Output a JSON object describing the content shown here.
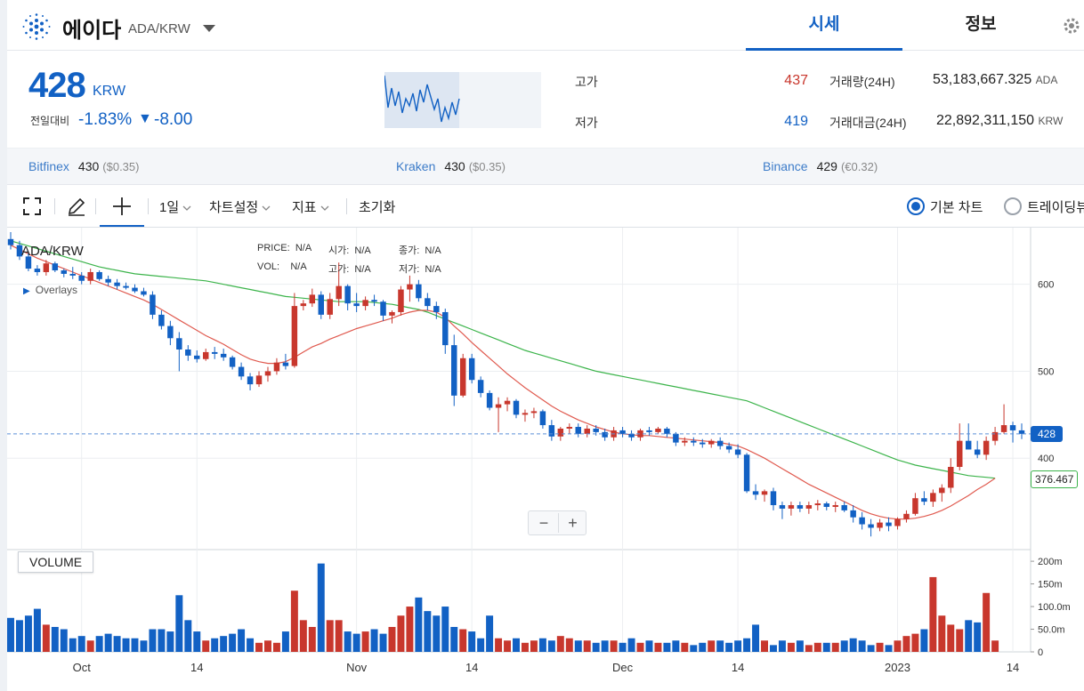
{
  "header": {
    "coin_name": "에이다",
    "pair": "ADA/KRW",
    "tabs": [
      {
        "label": "시세",
        "active": true
      },
      {
        "label": "정보",
        "active": false
      }
    ]
  },
  "ticker": {
    "price": "428",
    "unit": "KRW",
    "change_label": "전일대비",
    "change_pct": "-1.83%",
    "change_arrow": "▼",
    "change_abs": "-8.00",
    "high_label": "고가",
    "high": "437",
    "low_label": "저가",
    "low": "419",
    "volume_label": "거래량(24H)",
    "volume": "53,183,667.325",
    "volume_unit": "ADA",
    "amount_label": "거래대금(24H)",
    "amount": "22,892,311,150",
    "amount_unit": "KRW"
  },
  "exchanges": [
    {
      "name": "Bitfinex",
      "price": "430",
      "sub": "($0.35)"
    },
    {
      "name": "Kraken",
      "price": "430",
      "sub": "($0.35)"
    },
    {
      "name": "Binance",
      "price": "429",
      "sub": "(€0.32)"
    }
  ],
  "toolbar": {
    "interval": "1일",
    "chart_settings": "차트설정",
    "indicators": "지표",
    "reset": "초기화",
    "basic_chart": "기본 차트",
    "trading_view": "트레이딩뷰"
  },
  "colors": {
    "up": "#c8372d",
    "down": "#1261c4",
    "accent": "#1261c4",
    "ma_short": "#e05a4f",
    "ma_long": "#3cb44b"
  },
  "chart_overlay": {
    "pair": "ADA/KRW",
    "overlays_label": "Overlays",
    "ohlc": [
      {
        "k": "PRICE:",
        "v": "N/A"
      },
      {
        "k": "시가:",
        "v": "N/A"
      },
      {
        "k": "종가:",
        "v": "N/A"
      },
      {
        "k": "VOL:",
        "v": "N/A"
      },
      {
        "k": "고가:",
        "v": "N/A"
      },
      {
        "k": "저가:",
        "v": "N/A"
      }
    ],
    "last_price": "428",
    "ma_value": "376.467",
    "volume_label": "VOLUME"
  },
  "chart_data": {
    "type": "candlestick",
    "title": "",
    "ylim": [
      300,
      660
    ],
    "y_ticks": [
      "600",
      "500",
      "400"
    ],
    "x_ticks": [
      {
        "label": "Oct",
        "i": 8
      },
      {
        "label": "14",
        "i": 21
      },
      {
        "label": "Nov",
        "i": 39
      },
      {
        "label": "14",
        "i": 52
      },
      {
        "label": "Dec",
        "i": 69
      },
      {
        "label": "14",
        "i": 82
      },
      {
        "label": "2023",
        "i": 100
      },
      {
        "label": "14",
        "i": 113
      }
    ],
    "volume_ticks": [
      {
        "label": "200m",
        "v": 200
      },
      {
        "label": "150m",
        "v": 150
      },
      {
        "label": "100.0m",
        "v": 100
      },
      {
        "label": "50.0m",
        "v": 50
      },
      {
        "label": "0",
        "v": 0
      }
    ],
    "volume_ylim": [
      0,
      210
    ],
    "candles": [
      [
        652,
        660,
        640,
        645
      ],
      [
        645,
        650,
        628,
        632
      ],
      [
        632,
        636,
        615,
        618
      ],
      [
        618,
        622,
        610,
        614
      ],
      [
        614,
        628,
        610,
        624
      ],
      [
        624,
        626,
        614,
        616
      ],
      [
        616,
        618,
        608,
        612
      ],
      [
        612,
        620,
        606,
        610
      ],
      [
        610,
        614,
        600,
        604
      ],
      [
        604,
        618,
        600,
        614
      ],
      [
        614,
        616,
        604,
        606
      ],
      [
        606,
        610,
        598,
        602
      ],
      [
        602,
        606,
        594,
        598
      ],
      [
        598,
        602,
        594,
        596
      ],
      [
        596,
        600,
        590,
        592
      ],
      [
        592,
        596,
        586,
        588
      ],
      [
        588,
        592,
        560,
        565
      ],
      [
        565,
        570,
        548,
        552
      ],
      [
        552,
        558,
        530,
        538
      ],
      [
        538,
        545,
        500,
        525
      ],
      [
        525,
        530,
        512,
        518
      ],
      [
        518,
        524,
        510,
        514
      ],
      [
        514,
        526,
        512,
        522
      ],
      [
        522,
        528,
        514,
        520
      ],
      [
        520,
        526,
        512,
        516
      ],
      [
        516,
        518,
        502,
        505
      ],
      [
        505,
        510,
        490,
        494
      ],
      [
        494,
        498,
        478,
        485
      ],
      [
        485,
        500,
        482,
        495
      ],
      [
        495,
        505,
        488,
        500
      ],
      [
        500,
        515,
        496,
        510
      ],
      [
        510,
        520,
        502,
        506
      ],
      [
        506,
        590,
        504,
        575
      ],
      [
        575,
        582,
        570,
        578
      ],
      [
        578,
        595,
        574,
        588
      ],
      [
        588,
        592,
        560,
        565
      ],
      [
        565,
        590,
        560,
        583
      ],
      [
        583,
        625,
        575,
        598
      ],
      [
        598,
        600,
        570,
        578
      ],
      [
        578,
        590,
        568,
        575
      ],
      [
        575,
        586,
        570,
        582
      ],
      [
        582,
        588,
        575,
        580
      ],
      [
        580,
        582,
        558,
        564
      ],
      [
        564,
        570,
        555,
        568
      ],
      [
        568,
        598,
        564,
        594
      ],
      [
        594,
        610,
        580,
        600
      ],
      [
        600,
        605,
        580,
        584
      ],
      [
        584,
        590,
        570,
        575
      ],
      [
        575,
        580,
        560,
        568
      ],
      [
        568,
        572,
        520,
        530
      ],
      [
        530,
        542,
        460,
        472
      ],
      [
        472,
        520,
        470,
        515
      ],
      [
        515,
        520,
        486,
        490
      ],
      [
        490,
        494,
        470,
        475
      ],
      [
        475,
        478,
        455,
        458
      ],
      [
        458,
        470,
        430,
        462
      ],
      [
        462,
        470,
        454,
        466
      ],
      [
        466,
        468,
        446,
        450
      ],
      [
        450,
        456,
        442,
        452
      ],
      [
        452,
        458,
        446,
        454
      ],
      [
        454,
        456,
        434,
        438
      ],
      [
        438,
        444,
        420,
        425
      ],
      [
        425,
        436,
        420,
        434
      ],
      [
        434,
        440,
        428,
        436
      ],
      [
        436,
        440,
        424,
        428
      ],
      [
        428,
        438,
        424,
        434
      ],
      [
        434,
        438,
        426,
        430
      ],
      [
        430,
        434,
        420,
        424
      ],
      [
        424,
        436,
        420,
        432
      ],
      [
        432,
        436,
        424,
        428
      ],
      [
        428,
        432,
        420,
        424
      ],
      [
        424,
        434,
        420,
        432
      ],
      [
        432,
        436,
        426,
        430
      ],
      [
        430,
        436,
        428,
        434
      ],
      [
        434,
        436,
        424,
        428
      ],
      [
        428,
        430,
        414,
        418
      ],
      [
        418,
        424,
        414,
        420
      ],
      [
        420,
        424,
        414,
        418
      ],
      [
        418,
        422,
        412,
        416
      ],
      [
        416,
        422,
        412,
        420
      ],
      [
        420,
        424,
        410,
        414
      ],
      [
        414,
        418,
        406,
        410
      ],
      [
        410,
        416,
        400,
        404
      ],
      [
        404,
        406,
        360,
        362
      ],
      [
        362,
        370,
        352,
        358
      ],
      [
        358,
        364,
        350,
        362
      ],
      [
        362,
        366,
        340,
        346
      ],
      [
        346,
        350,
        330,
        342
      ],
      [
        342,
        350,
        334,
        346
      ],
      [
        346,
        350,
        338,
        342
      ],
      [
        342,
        350,
        336,
        346
      ],
      [
        346,
        352,
        340,
        348
      ],
      [
        348,
        350,
        340,
        344
      ],
      [
        344,
        350,
        338,
        346
      ],
      [
        346,
        350,
        338,
        340
      ],
      [
        340,
        346,
        326,
        332
      ],
      [
        332,
        338,
        318,
        324
      ],
      [
        324,
        330,
        310,
        320
      ],
      [
        320,
        330,
        316,
        326
      ],
      [
        326,
        332,
        316,
        322
      ],
      [
        322,
        332,
        318,
        330
      ],
      [
        330,
        340,
        326,
        336
      ],
      [
        336,
        360,
        334,
        354
      ],
      [
        354,
        362,
        346,
        350
      ],
      [
        350,
        364,
        344,
        360
      ],
      [
        360,
        370,
        350,
        366
      ],
      [
        366,
        400,
        360,
        390
      ],
      [
        390,
        440,
        386,
        420
      ],
      [
        420,
        440,
        410,
        410
      ],
      [
        410,
        420,
        400,
        404
      ],
      [
        404,
        425,
        398,
        420
      ],
      [
        420,
        436,
        415,
        430
      ],
      [
        430,
        462,
        428,
        438
      ],
      [
        438,
        442,
        418,
        432
      ],
      [
        432,
        440,
        422,
        428
      ]
    ],
    "volume": [
      75,
      70,
      80,
      95,
      60,
      55,
      50,
      30,
      35,
      25,
      35,
      40,
      35,
      30,
      30,
      25,
      50,
      50,
      45,
      125,
      70,
      45,
      25,
      30,
      35,
      40,
      50,
      30,
      20,
      25,
      20,
      45,
      135,
      70,
      55,
      195,
      70,
      70,
      45,
      40,
      45,
      50,
      40,
      55,
      80,
      100,
      120,
      90,
      80,
      100,
      55,
      50,
      45,
      30,
      80,
      30,
      25,
      30,
      20,
      25,
      30,
      25,
      35,
      30,
      25,
      25,
      20,
      25,
      25,
      20,
      30,
      20,
      25,
      20,
      20,
      25,
      20,
      15,
      20,
      25,
      25,
      20,
      25,
      30,
      60,
      25,
      15,
      25,
      20,
      25,
      15,
      20,
      20,
      20,
      25,
      30,
      25,
      15,
      20,
      15,
      25,
      35,
      40,
      50,
      165,
      80,
      60,
      50,
      70,
      65,
      130,
      25
    ],
    "ma_short": [
      645,
      640,
      635,
      630,
      626,
      622,
      618,
      614,
      610,
      606,
      602,
      598,
      594,
      590,
      586,
      582,
      577,
      571,
      565,
      559,
      553,
      547,
      541,
      536,
      531,
      525,
      519,
      514,
      511,
      509,
      509,
      511,
      516,
      522,
      528,
      532,
      537,
      541,
      545,
      549,
      552,
      555,
      558,
      561,
      565,
      568,
      570,
      570,
      568,
      562,
      552,
      543,
      533,
      524,
      515,
      506,
      497,
      489,
      481,
      474,
      467,
      460,
      454,
      449,
      444,
      440,
      436,
      433,
      430,
      428,
      427,
      426,
      426,
      425,
      424,
      423,
      422,
      421,
      420,
      419,
      418,
      416,
      414,
      410,
      405,
      400,
      394,
      388,
      382,
      376,
      370,
      365,
      360,
      355,
      350,
      345,
      340,
      336,
      333,
      331,
      330,
      330,
      331,
      333,
      336,
      340,
      345,
      351,
      357,
      364,
      370,
      377
    ],
    "ma_long": [
      650,
      647,
      644,
      641,
      638,
      635,
      632,
      629,
      626,
      623,
      620,
      618,
      616,
      614,
      612,
      611,
      610,
      609,
      608,
      607,
      606,
      605,
      604,
      602,
      600,
      598,
      596,
      594,
      592,
      590,
      588,
      586,
      585,
      584,
      583,
      582,
      581,
      580,
      580,
      580,
      580,
      579,
      578,
      577,
      575,
      573,
      571,
      568,
      564,
      560,
      556,
      552,
      548,
      544,
      540,
      536,
      532,
      528,
      524,
      521,
      518,
      515,
      512,
      509,
      506,
      503,
      500,
      498,
      496,
      494,
      492,
      490,
      488,
      486,
      484,
      482,
      480,
      478,
      476,
      474,
      472,
      470,
      468,
      466,
      462,
      458,
      454,
      450,
      446,
      442,
      438,
      434,
      430,
      426,
      422,
      418,
      414,
      410,
      406,
      402,
      398,
      395,
      392,
      390,
      388,
      386,
      384,
      382,
      380,
      379,
      378,
      377
    ]
  }
}
